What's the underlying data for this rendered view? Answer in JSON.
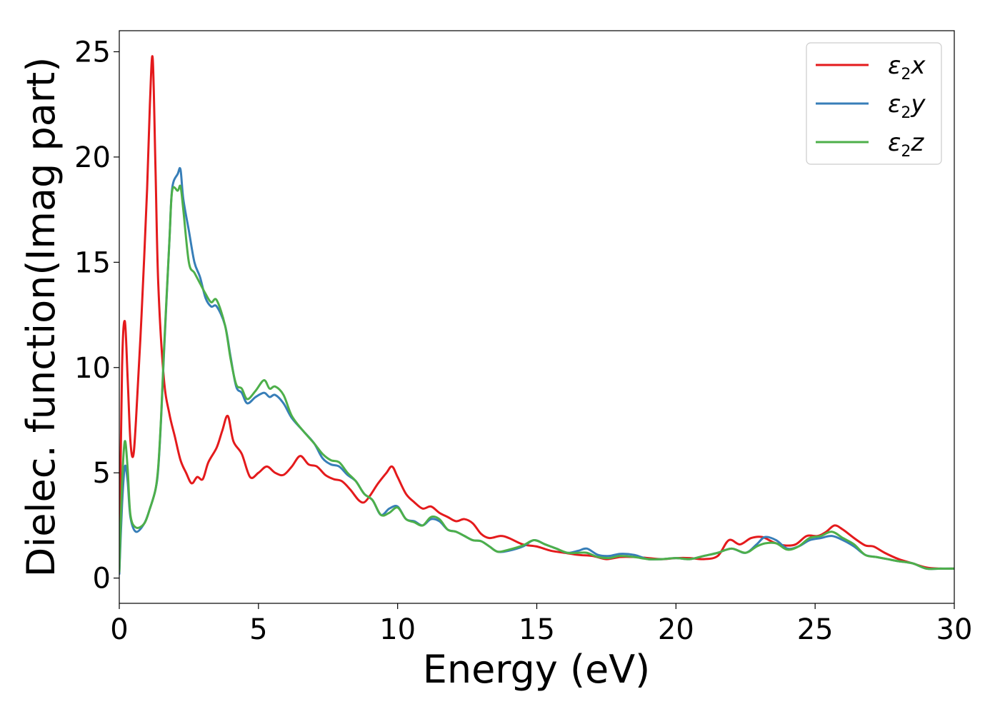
{
  "chart_data": {
    "type": "line",
    "xlabel": "Energy (eV)",
    "ylabel": "Dielec. function(Imag part)",
    "xlim": [
      0,
      30
    ],
    "ylim": [
      -1.2,
      26
    ],
    "xticks": [
      0,
      5,
      10,
      15,
      20,
      25,
      30
    ],
    "yticks": [
      0,
      5,
      10,
      15,
      20,
      25
    ],
    "grid": false,
    "legend_position": "top-right",
    "series": [
      {
        "name": "ε2x",
        "name_base": "ε",
        "name_sub": "2",
        "name_suffix": "x",
        "color": "#e41a1c",
        "points": [
          [
            0,
            0.5
          ],
          [
            0.1,
            10
          ],
          [
            0.2,
            12.2
          ],
          [
            0.3,
            9.5
          ],
          [
            0.4,
            6.5
          ],
          [
            0.5,
            5.8
          ],
          [
            0.6,
            7.5
          ],
          [
            0.8,
            12.5
          ],
          [
            1.0,
            18.5
          ],
          [
            1.1,
            22.5
          ],
          [
            1.2,
            24.7
          ],
          [
            1.3,
            19.5
          ],
          [
            1.4,
            14
          ],
          [
            1.6,
            9.5
          ],
          [
            1.8,
            7.8
          ],
          [
            2.0,
            6.7
          ],
          [
            2.2,
            5.6
          ],
          [
            2.4,
            5.0
          ],
          [
            2.6,
            4.5
          ],
          [
            2.8,
            4.8
          ],
          [
            3.0,
            4.7
          ],
          [
            3.2,
            5.5
          ],
          [
            3.5,
            6.2
          ],
          [
            3.7,
            7.0
          ],
          [
            3.9,
            7.7
          ],
          [
            4.1,
            6.5
          ],
          [
            4.4,
            5.9
          ],
          [
            4.7,
            4.8
          ],
          [
            5.0,
            5.0
          ],
          [
            5.3,
            5.3
          ],
          [
            5.6,
            5.0
          ],
          [
            5.9,
            4.9
          ],
          [
            6.2,
            5.3
          ],
          [
            6.5,
            5.8
          ],
          [
            6.8,
            5.4
          ],
          [
            7.1,
            5.3
          ],
          [
            7.4,
            4.9
          ],
          [
            7.7,
            4.7
          ],
          [
            8.0,
            4.6
          ],
          [
            8.3,
            4.2
          ],
          [
            8.6,
            3.7
          ],
          [
            8.8,
            3.6
          ],
          [
            9.0,
            3.9
          ],
          [
            9.3,
            4.5
          ],
          [
            9.6,
            5.0
          ],
          [
            9.8,
            5.3
          ],
          [
            10.0,
            4.8
          ],
          [
            10.3,
            4.0
          ],
          [
            10.6,
            3.6
          ],
          [
            10.9,
            3.3
          ],
          [
            11.2,
            3.4
          ],
          [
            11.5,
            3.1
          ],
          [
            11.8,
            2.9
          ],
          [
            12.1,
            2.7
          ],
          [
            12.4,
            2.8
          ],
          [
            12.7,
            2.6
          ],
          [
            13.0,
            2.1
          ],
          [
            13.3,
            1.9
          ],
          [
            13.7,
            2.0
          ],
          [
            14.0,
            1.9
          ],
          [
            14.5,
            1.6
          ],
          [
            15.0,
            1.5
          ],
          [
            15.5,
            1.3
          ],
          [
            16.0,
            1.2
          ],
          [
            16.5,
            1.1
          ],
          [
            17.0,
            1.05
          ],
          [
            17.5,
            0.9
          ],
          [
            18.0,
            1.0
          ],
          [
            18.5,
            1.0
          ],
          [
            19.0,
            0.95
          ],
          [
            19.5,
            0.9
          ],
          [
            20.0,
            0.95
          ],
          [
            20.5,
            0.95
          ],
          [
            21.0,
            0.9
          ],
          [
            21.5,
            1.05
          ],
          [
            21.9,
            1.8
          ],
          [
            22.3,
            1.6
          ],
          [
            22.7,
            1.9
          ],
          [
            23.1,
            1.95
          ],
          [
            23.5,
            1.7
          ],
          [
            23.9,
            1.55
          ],
          [
            24.3,
            1.6
          ],
          [
            24.7,
            2.0
          ],
          [
            25.1,
            2.0
          ],
          [
            25.4,
            2.2
          ],
          [
            25.7,
            2.5
          ],
          [
            26.0,
            2.3
          ],
          [
            26.4,
            1.9
          ],
          [
            26.8,
            1.55
          ],
          [
            27.1,
            1.5
          ],
          [
            27.5,
            1.2
          ],
          [
            28.0,
            0.9
          ],
          [
            28.5,
            0.7
          ],
          [
            29.0,
            0.5
          ],
          [
            29.5,
            0.45
          ],
          [
            30.0,
            0.45
          ]
        ]
      },
      {
        "name": "ε2y",
        "name_base": "ε",
        "name_sub": "2",
        "name_suffix": "y",
        "color": "#377eb8",
        "points": [
          [
            0,
            0.2
          ],
          [
            0.1,
            3.5
          ],
          [
            0.2,
            5.3
          ],
          [
            0.3,
            4.6
          ],
          [
            0.4,
            2.9
          ],
          [
            0.6,
            2.2
          ],
          [
            0.9,
            2.6
          ],
          [
            1.1,
            3.3
          ],
          [
            1.3,
            4.2
          ],
          [
            1.4,
            5.2
          ],
          [
            1.5,
            7.5
          ],
          [
            1.6,
            10.5
          ],
          [
            1.8,
            16.0
          ],
          [
            1.9,
            18.5
          ],
          [
            2.1,
            19.2
          ],
          [
            2.2,
            19.4
          ],
          [
            2.3,
            18.0
          ],
          [
            2.5,
            16.5
          ],
          [
            2.7,
            15.0
          ],
          [
            2.9,
            14.3
          ],
          [
            3.1,
            13.3
          ],
          [
            3.3,
            12.9
          ],
          [
            3.5,
            12.9
          ],
          [
            3.8,
            12.0
          ],
          [
            4.0,
            10.5
          ],
          [
            4.2,
            9.1
          ],
          [
            4.4,
            8.8
          ],
          [
            4.6,
            8.3
          ],
          [
            4.9,
            8.6
          ],
          [
            5.2,
            8.8
          ],
          [
            5.4,
            8.6
          ],
          [
            5.6,
            8.7
          ],
          [
            5.9,
            8.3
          ],
          [
            6.2,
            7.6
          ],
          [
            6.6,
            7.0
          ],
          [
            7.0,
            6.4
          ],
          [
            7.3,
            5.7
          ],
          [
            7.6,
            5.4
          ],
          [
            7.9,
            5.3
          ],
          [
            8.2,
            4.9
          ],
          [
            8.5,
            4.6
          ],
          [
            8.8,
            4.0
          ],
          [
            9.1,
            3.7
          ],
          [
            9.4,
            3.0
          ],
          [
            9.7,
            3.3
          ],
          [
            10.0,
            3.4
          ],
          [
            10.3,
            2.8
          ],
          [
            10.6,
            2.7
          ],
          [
            10.9,
            2.5
          ],
          [
            11.2,
            2.8
          ],
          [
            11.5,
            2.7
          ],
          [
            11.8,
            2.3
          ],
          [
            12.1,
            2.2
          ],
          [
            12.4,
            2.0
          ],
          [
            12.7,
            1.8
          ],
          [
            13.0,
            1.75
          ],
          [
            13.3,
            1.5
          ],
          [
            13.6,
            1.25
          ],
          [
            14.0,
            1.3
          ],
          [
            14.5,
            1.5
          ],
          [
            14.9,
            1.8
          ],
          [
            15.3,
            1.6
          ],
          [
            15.7,
            1.4
          ],
          [
            16.1,
            1.2
          ],
          [
            16.5,
            1.3
          ],
          [
            16.8,
            1.4
          ],
          [
            17.2,
            1.1
          ],
          [
            17.6,
            1.05
          ],
          [
            18.0,
            1.15
          ],
          [
            18.5,
            1.1
          ],
          [
            19.0,
            0.9
          ],
          [
            19.5,
            0.9
          ],
          [
            20.0,
            0.95
          ],
          [
            20.5,
            0.9
          ],
          [
            21.0,
            1.05
          ],
          [
            21.5,
            1.2
          ],
          [
            22.0,
            1.4
          ],
          [
            22.5,
            1.2
          ],
          [
            22.9,
            1.6
          ],
          [
            23.2,
            1.95
          ],
          [
            23.6,
            1.8
          ],
          [
            24.0,
            1.4
          ],
          [
            24.4,
            1.5
          ],
          [
            24.8,
            1.8
          ],
          [
            25.2,
            1.9
          ],
          [
            25.6,
            2.0
          ],
          [
            26.0,
            1.8
          ],
          [
            26.4,
            1.5
          ],
          [
            26.8,
            1.1
          ],
          [
            27.2,
            1.0
          ],
          [
            27.6,
            0.9
          ],
          [
            28.0,
            0.8
          ],
          [
            28.5,
            0.7
          ],
          [
            29.0,
            0.45
          ],
          [
            29.5,
            0.45
          ],
          [
            30.0,
            0.45
          ]
        ]
      },
      {
        "name": "ε2z",
        "name_base": "ε",
        "name_sub": "2",
        "name_suffix": "z",
        "color": "#4daf4a",
        "points": [
          [
            0,
            0.3
          ],
          [
            0.1,
            4.5
          ],
          [
            0.2,
            6.5
          ],
          [
            0.3,
            5.2
          ],
          [
            0.4,
            3.0
          ],
          [
            0.6,
            2.4
          ],
          [
            0.9,
            2.6
          ],
          [
            1.1,
            3.3
          ],
          [
            1.3,
            4.2
          ],
          [
            1.4,
            5.3
          ],
          [
            1.5,
            7.6
          ],
          [
            1.6,
            10.7
          ],
          [
            1.8,
            16.0
          ],
          [
            1.9,
            18.4
          ],
          [
            2.1,
            18.4
          ],
          [
            2.2,
            18.6
          ],
          [
            2.3,
            17.5
          ],
          [
            2.5,
            15.0
          ],
          [
            2.7,
            14.5
          ],
          [
            2.9,
            14.0
          ],
          [
            3.1,
            13.5
          ],
          [
            3.3,
            13.1
          ],
          [
            3.5,
            13.2
          ],
          [
            3.8,
            12.0
          ],
          [
            4.0,
            10.4
          ],
          [
            4.2,
            9.2
          ],
          [
            4.4,
            9.0
          ],
          [
            4.6,
            8.5
          ],
          [
            4.9,
            8.9
          ],
          [
            5.2,
            9.4
          ],
          [
            5.4,
            9.0
          ],
          [
            5.6,
            9.1
          ],
          [
            5.9,
            8.7
          ],
          [
            6.2,
            7.7
          ],
          [
            6.6,
            7.0
          ],
          [
            7.0,
            6.4
          ],
          [
            7.3,
            5.9
          ],
          [
            7.6,
            5.6
          ],
          [
            7.9,
            5.5
          ],
          [
            8.2,
            5.0
          ],
          [
            8.5,
            4.6
          ],
          [
            8.8,
            4.0
          ],
          [
            9.1,
            3.7
          ],
          [
            9.4,
            3.0
          ],
          [
            9.7,
            3.1
          ],
          [
            10.0,
            3.35
          ],
          [
            10.3,
            2.8
          ],
          [
            10.6,
            2.65
          ],
          [
            10.9,
            2.5
          ],
          [
            11.2,
            2.9
          ],
          [
            11.5,
            2.8
          ],
          [
            11.8,
            2.3
          ],
          [
            12.1,
            2.2
          ],
          [
            12.4,
            2.0
          ],
          [
            12.7,
            1.8
          ],
          [
            13.0,
            1.75
          ],
          [
            13.3,
            1.5
          ],
          [
            13.6,
            1.25
          ],
          [
            14.0,
            1.35
          ],
          [
            14.5,
            1.55
          ],
          [
            14.9,
            1.8
          ],
          [
            15.3,
            1.6
          ],
          [
            15.7,
            1.4
          ],
          [
            16.1,
            1.2
          ],
          [
            16.5,
            1.2
          ],
          [
            16.8,
            1.2
          ],
          [
            17.2,
            1.0
          ],
          [
            17.6,
            0.95
          ],
          [
            18.0,
            1.05
          ],
          [
            18.5,
            1.0
          ],
          [
            19.0,
            0.9
          ],
          [
            19.5,
            0.9
          ],
          [
            20.0,
            0.95
          ],
          [
            20.5,
            0.9
          ],
          [
            21.0,
            1.05
          ],
          [
            21.5,
            1.2
          ],
          [
            22.0,
            1.4
          ],
          [
            22.5,
            1.2
          ],
          [
            22.9,
            1.5
          ],
          [
            23.2,
            1.65
          ],
          [
            23.6,
            1.65
          ],
          [
            24.0,
            1.35
          ],
          [
            24.4,
            1.5
          ],
          [
            24.8,
            1.9
          ],
          [
            25.2,
            2.0
          ],
          [
            25.6,
            2.2
          ],
          [
            26.0,
            1.9
          ],
          [
            26.4,
            1.6
          ],
          [
            26.8,
            1.1
          ],
          [
            27.2,
            1.0
          ],
          [
            27.6,
            0.9
          ],
          [
            28.0,
            0.8
          ],
          [
            28.5,
            0.7
          ],
          [
            29.0,
            0.45
          ],
          [
            29.5,
            0.45
          ],
          [
            30.0,
            0.45
          ]
        ]
      }
    ]
  }
}
